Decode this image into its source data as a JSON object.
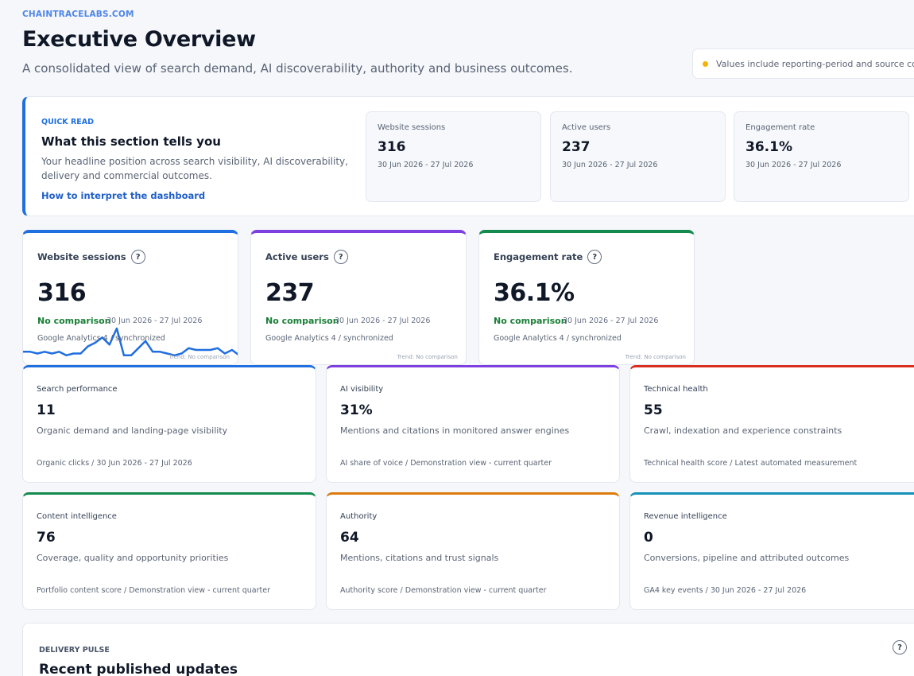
{
  "header": {
    "brand": "CHAINTRACELABS.COM",
    "title": "Executive Overview",
    "subtitle": "A consolidated view of search demand, AI discoverability, authority and business outcomes.",
    "notice": "Values include reporting-period and source context",
    "notice_dot_color": "#f5b301"
  },
  "quick_read": {
    "kicker": "QUICK READ",
    "title": "What this section tells you",
    "description": "Your headline position across search visibility, AI discoverability, delivery and commercial outcomes.",
    "link": "How to interpret the dashboard",
    "stats": [
      {
        "label": "Website sessions",
        "value": "316",
        "period": "30 Jun 2026 - 27 Jul 2026"
      },
      {
        "label": "Active users",
        "value": "237",
        "period": "30 Jun 2026 - 27 Jul 2026"
      },
      {
        "label": "Engagement rate",
        "value": "36.1%",
        "period": "30 Jun 2026 - 27 Jul 2026"
      }
    ]
  },
  "kpis": [
    {
      "label": "Website sessions",
      "help": "?",
      "value": "316",
      "comparison": "No comparison",
      "period": "30 Jun 2026 - 27 Jul 2026",
      "source": "Google Analytics 4 / synchronized",
      "trend": "Trend: No comparison",
      "accent": "#1f6fe0",
      "sparkline": [
        3,
        3,
        2,
        3,
        2,
        3,
        1,
        2,
        2,
        6,
        8,
        11,
        7,
        16,
        1,
        1,
        5,
        9,
        3,
        3,
        2,
        1,
        2,
        5,
        4,
        4,
        4,
        5,
        2,
        4,
        1
      ]
    },
    {
      "label": "Active users",
      "help": "?",
      "value": "237",
      "comparison": "No comparison",
      "period": "30 Jun 2026 - 27 Jul 2026",
      "source": "Google Analytics 4 / synchronized",
      "trend": "Trend: No comparison",
      "accent": "#7e3fe0"
    },
    {
      "label": "Engagement rate",
      "help": "?",
      "value": "36.1%",
      "comparison": "No comparison",
      "period": "30 Jun 2026 - 27 Jul 2026",
      "source": "Google Analytics 4 / synchronized",
      "trend": "Trend: No comparison",
      "accent": "#138a4e"
    }
  ],
  "cards": [
    {
      "label": "Search performance",
      "value": "11",
      "description": "Organic demand and landing-page visibility",
      "footer": "Organic clicks / 30 Jun 2026 - 27 Jul 2026",
      "accent": "#1f6fe0"
    },
    {
      "label": "AI visibility",
      "value": "31%",
      "description": "Mentions and citations in monitored answer engines",
      "footer": "AI share of voice / Demonstration view - current quarter",
      "accent": "#7e3fe0"
    },
    {
      "label": "Technical health",
      "value": "55",
      "description": "Crawl, indexation and experience constraints",
      "footer": "Technical health score / Latest automated measurement",
      "accent": "#d92d20"
    },
    {
      "label": "Content intelligence",
      "value": "76",
      "description": "Coverage, quality and opportunity priorities",
      "footer": "Portfolio content score / Demonstration view - current quarter",
      "accent": "#138a4e"
    },
    {
      "label": "Authority",
      "value": "64",
      "description": "Mentions, citations and trust signals",
      "footer": "Authority score / Demonstration view - current quarter",
      "accent": "#dc7a0b"
    },
    {
      "label": "Revenue intelligence",
      "value": "0",
      "description": "Conversions, pipeline and attributed outcomes",
      "footer": "GA4 key events / 30 Jun 2026 - 27 Jul 2026",
      "accent": "#1691b8"
    }
  ],
  "delivery": {
    "kicker": "DELIVERY PULSE",
    "title": "Recent published updates",
    "help": "?"
  }
}
